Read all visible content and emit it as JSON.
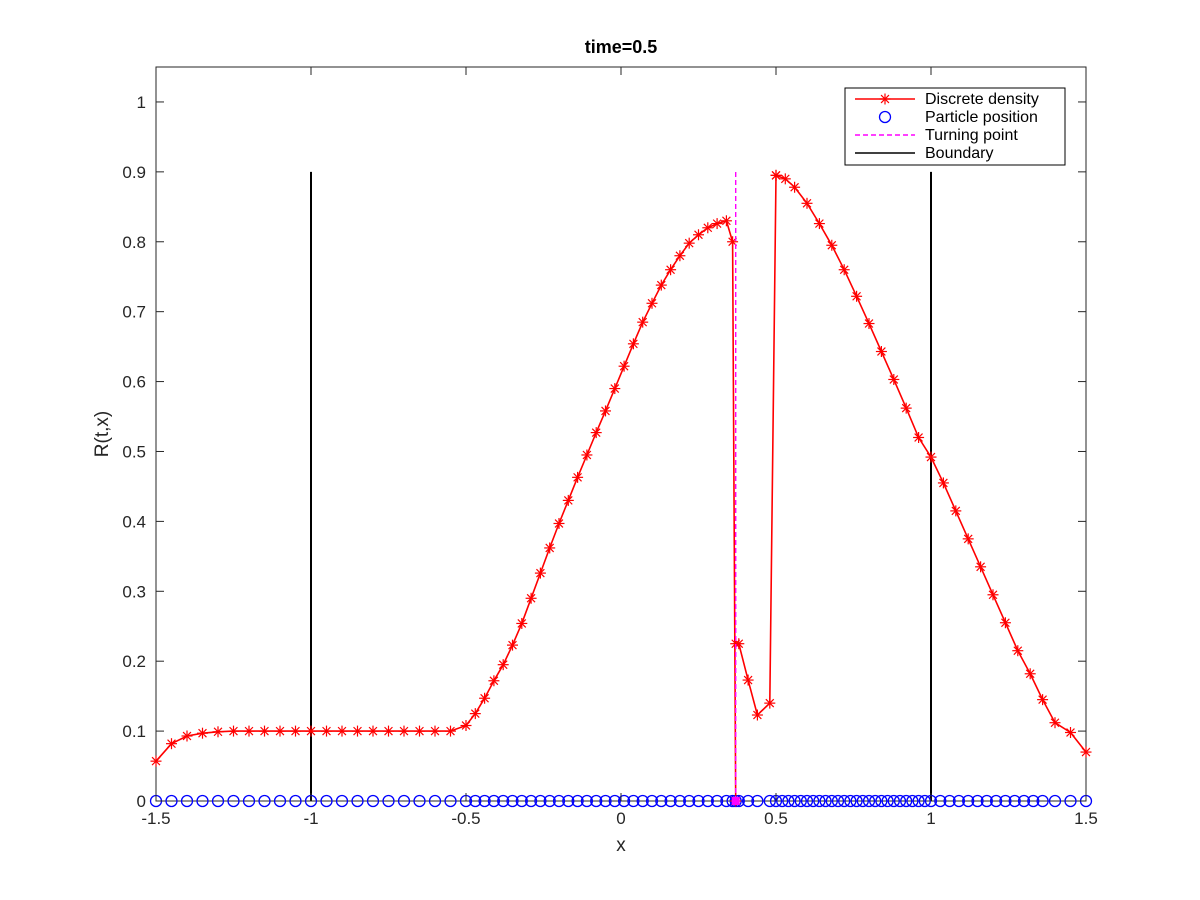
{
  "chart_data": {
    "type": "line",
    "title": "time=0.5",
    "xlabel": "x",
    "ylabel": "R(t,x)",
    "xlim": [
      -1.5,
      1.5
    ],
    "ylim": [
      0,
      1.05
    ],
    "x_ticks": [
      "-1.5",
      "-1",
      "-0.5",
      "0",
      "0.5",
      "1",
      "1.5"
    ],
    "x_tick_values": [
      -1.5,
      -1,
      -0.5,
      0,
      0.5,
      1,
      1.5
    ],
    "y_ticks": [
      "0",
      "0.1",
      "0.2",
      "0.3",
      "0.4",
      "0.5",
      "0.6",
      "0.7",
      "0.8",
      "0.9",
      "1"
    ],
    "y_tick_values": [
      0,
      0.1,
      0.2,
      0.3,
      0.4,
      0.5,
      0.6,
      0.7,
      0.8,
      0.9,
      1.0
    ],
    "grid": false,
    "legend_position": "top-right",
    "series": [
      {
        "name": "Discrete density",
        "kind": "line-star",
        "color": "#ff0000",
        "segments": [
          {
            "x": [
              -1.5,
              -1.45,
              -1.4,
              -1.35,
              -1.3,
              -1.25,
              -1.2,
              -1.15,
              -1.1,
              -1.05,
              -1.0,
              -0.95,
              -0.9,
              -0.85,
              -0.8,
              -0.75,
              -0.7,
              -0.65,
              -0.6,
              -0.55,
              -0.5,
              -0.47,
              -0.44,
              -0.41,
              -0.38,
              -0.35,
              -0.32,
              -0.29,
              -0.26,
              -0.23,
              -0.2,
              -0.17,
              -0.14,
              -0.11,
              -0.08,
              -0.05,
              -0.02,
              0.01,
              0.04,
              0.07,
              0.1,
              0.13,
              0.16,
              0.19,
              0.22,
              0.25,
              0.28,
              0.31,
              0.34,
              0.36,
              0.37
            ],
            "y": [
              0.057,
              0.082,
              0.093,
              0.097,
              0.099,
              0.1,
              0.1,
              0.1,
              0.1,
              0.1,
              0.1,
              0.1,
              0.1,
              0.1,
              0.1,
              0.1,
              0.1,
              0.1,
              0.1,
              0.1,
              0.108,
              0.125,
              0.147,
              0.172,
              0.195,
              0.223,
              0.254,
              0.29,
              0.326,
              0.362,
              0.397,
              0.43,
              0.463,
              0.495,
              0.527,
              0.558,
              0.59,
              0.622,
              0.654,
              0.685,
              0.712,
              0.738,
              0.76,
              0.78,
              0.798,
              0.81,
              0.82,
              0.826,
              0.83,
              0.8,
              0.0
            ]
          },
          {
            "x": [
              0.37,
              0.38,
              0.41,
              0.44,
              0.48,
              0.5
            ],
            "y": [
              0.225,
              0.225,
              0.173,
              0.123,
              0.14,
              0.895
            ]
          },
          {
            "x": [
              0.5,
              0.53,
              0.56,
              0.6,
              0.64,
              0.68,
              0.72,
              0.76,
              0.8,
              0.84,
              0.88,
              0.92,
              0.96,
              1.0,
              1.04,
              1.08,
              1.12,
              1.16,
              1.2,
              1.24,
              1.28,
              1.32,
              1.36,
              1.4,
              1.45,
              1.5
            ],
            "y": [
              0.895,
              0.89,
              0.878,
              0.855,
              0.826,
              0.795,
              0.76,
              0.722,
              0.683,
              0.643,
              0.603,
              0.562,
              0.52,
              0.492,
              0.455,
              0.415,
              0.375,
              0.335,
              0.295,
              0.255,
              0.215,
              0.182,
              0.145,
              0.112,
              0.098,
              0.07
            ]
          }
        ]
      },
      {
        "name": "Particle position",
        "kind": "marker-circle",
        "color": "#0000ff",
        "x": [
          -1.5,
          -1.45,
          -1.4,
          -1.35,
          -1.3,
          -1.25,
          -1.2,
          -1.15,
          -1.1,
          -1.05,
          -1.0,
          -0.95,
          -0.9,
          -0.85,
          -0.8,
          -0.75,
          -0.7,
          -0.65,
          -0.6,
          -0.55,
          -0.5,
          -0.47,
          -0.44,
          -0.41,
          -0.38,
          -0.35,
          -0.32,
          -0.29,
          -0.26,
          -0.23,
          -0.2,
          -0.17,
          -0.14,
          -0.11,
          -0.08,
          -0.05,
          -0.02,
          0.01,
          0.04,
          0.07,
          0.1,
          0.13,
          0.16,
          0.19,
          0.22,
          0.25,
          0.28,
          0.31,
          0.34,
          0.36,
          0.37,
          0.38,
          0.41,
          0.44,
          0.48,
          0.5,
          0.52,
          0.54,
          0.56,
          0.58,
          0.6,
          0.62,
          0.64,
          0.66,
          0.68,
          0.7,
          0.72,
          0.74,
          0.76,
          0.78,
          0.8,
          0.82,
          0.84,
          0.86,
          0.88,
          0.9,
          0.92,
          0.94,
          0.96,
          0.98,
          1.0,
          1.03,
          1.06,
          1.09,
          1.12,
          1.15,
          1.18,
          1.21,
          1.24,
          1.27,
          1.3,
          1.33,
          1.36,
          1.4,
          1.45,
          1.5
        ],
        "y_value": 0
      },
      {
        "name": "Turning point",
        "kind": "dashed-vertical",
        "color": "#ff00ff",
        "x": 0.37,
        "y": [
          0,
          0.9
        ]
      },
      {
        "name": "Boundary",
        "kind": "solid-vertical",
        "color": "#000000",
        "x": [
          -1.0,
          1.0
        ],
        "y": [
          0,
          0.9
        ]
      }
    ]
  },
  "legend": [
    {
      "label": "Discrete density",
      "color": "#ff0000",
      "kind": "line-star"
    },
    {
      "label": "Particle position",
      "color": "#0000ff",
      "kind": "marker-circle"
    },
    {
      "label": "Turning point",
      "color": "#ff00ff",
      "kind": "dashed"
    },
    {
      "label": "Boundary",
      "color": "#000000",
      "kind": "solid"
    }
  ]
}
